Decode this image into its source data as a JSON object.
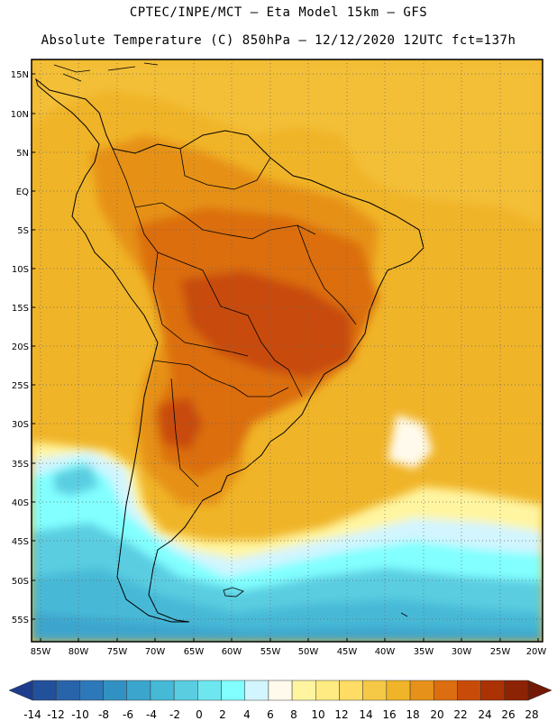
{
  "header": {
    "line1": "CPTEC/INPE/MCT —   Eta Model 15km — GFS",
    "line2": "Absolute Temperature (C) 850hPa — 12/12/2020 12UTC fct=137h"
  },
  "map": {
    "lat_labels": [
      "15N",
      "10N",
      "5N",
      "EQ",
      "5S",
      "10S",
      "15S",
      "20S",
      "25S",
      "30S",
      "35S",
      "40S",
      "45S",
      "50S",
      "55S"
    ],
    "lon_labels": [
      "85W",
      "80W",
      "75W",
      "70W",
      "65W",
      "60W",
      "55W",
      "50W",
      "45W",
      "40W",
      "35W",
      "30W",
      "25W",
      "20W"
    ]
  },
  "colorbar": {
    "labels": [
      "-14",
      "-12",
      "-10",
      "-8",
      "-6",
      "-4",
      "-2",
      "0",
      "2",
      "4",
      "6",
      "8",
      "10",
      "12",
      "14",
      "16",
      "18",
      "20",
      "22",
      "24",
      "26",
      "28"
    ],
    "colors": [
      "#1e3c8c",
      "#23509b",
      "#2864aa",
      "#2d78b9",
      "#3291c3",
      "#3ca5cd",
      "#46b9d7",
      "#5acde1",
      "#6ee6f0",
      "#82ffff",
      "#d2f5ff",
      "#fffaeb",
      "#fff5a0",
      "#ffeb82",
      "#ffdc64",
      "#f5c846",
      "#f0b428",
      "#e69119",
      "#dc6e0f",
      "#c84b0a",
      "#aa3205",
      "#8c2305",
      "#731905"
    ]
  }
}
